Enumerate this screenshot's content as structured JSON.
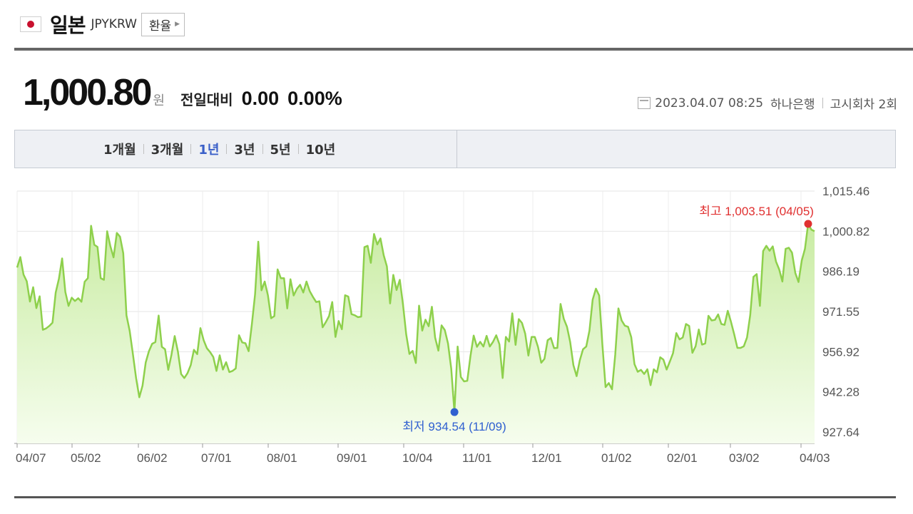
{
  "header": {
    "country": "일본",
    "code": "JPYKRW",
    "fx_button": "환율"
  },
  "price": {
    "value": "1,000.80",
    "unit": "원",
    "compare_label": "전일대비",
    "change": "0.00",
    "change_pct": "0.00%"
  },
  "meta": {
    "datetime": "2023.04.07 08:25",
    "bank": "하나은행",
    "notice": "고시회차 2회"
  },
  "tabs": [
    "1개월",
    "3개월",
    "1년",
    "3년",
    "5년",
    "10년"
  ],
  "active_tab": "1년",
  "colors": {
    "line": "#8ed04c",
    "fill_top": "#c9eca3",
    "fill_bottom": "#f6fdee",
    "high": "#e03030",
    "low": "#3060d0",
    "active_tab": "#3a5fc8"
  },
  "chart_data": {
    "type": "area",
    "title": "",
    "xlabel": "",
    "ylabel": "",
    "yticks": [
      "1,015.46",
      "1,000.82",
      "986.19",
      "971.55",
      "956.92",
      "942.28",
      "927.64"
    ],
    "ylim": [
      927.64,
      1015.46
    ],
    "xticks": [
      "04/07",
      "05/02",
      "06/02",
      "07/01",
      "08/01",
      "09/01",
      "10/04",
      "11/01",
      "12/01",
      "01/02",
      "02/01",
      "03/02",
      "04/03"
    ],
    "grid": true,
    "high_label": "최고 1,003.51 (04/05)",
    "low_label": "최저 934.54 (11/09)",
    "high": {
      "date": "04/05",
      "value": 1003.51
    },
    "low": {
      "date": "11/09",
      "value": 934.54
    },
    "series": [
      {
        "values": [
          987.6,
          991.4,
          985.0,
          982.6,
          975.2,
          980.4,
          972.8,
          977.1,
          964.9,
          965.4,
          966.3,
          967.5,
          978.5,
          983.5,
          990.9,
          978.7,
          973.6,
          976.6,
          975.4,
          976.4,
          975.1,
          982.4,
          983.7,
          1002.8,
          995.9,
          995.1,
          983.7,
          983.1,
          1000.8,
          995.4,
          991.3,
          1000.2,
          998.8,
          992.8,
          970.2,
          964.5,
          956.1,
          947.3,
          940.3,
          944.5,
          953.0,
          957.1,
          959.8,
          960.4,
          970.1,
          958.7,
          957.8,
          950.3,
          955.8,
          962.6,
          957.0,
          948.8,
          947.3,
          949.1,
          952.0,
          957.6,
          956.0,
          965.5,
          961.1,
          958.2,
          956.8,
          955.0,
          949.9,
          955.6,
          950.4,
          953.1,
          949.5,
          949.9,
          950.8,
          962.9,
          960.3,
          960.0,
          957.1,
          966.9,
          977.8,
          997.0,
          979.3,
          982.5,
          977.5,
          969.1,
          969.9,
          986.9,
          983.7,
          983.7,
          972.7,
          983.3,
          977.4,
          979.8,
          981.3,
          978.5,
          982.5,
          979.0,
          976.9,
          975.0,
          975.3,
          965.8,
          967.7,
          969.9,
          975.0,
          962.3,
          968.1,
          965.1,
          977.5,
          977.0,
          970.6,
          970.2,
          969.5,
          969.7,
          995.0,
          995.5,
          989.3,
          999.8,
          996.0,
          998.2,
          992.1,
          988.0,
          974.5,
          984.9,
          979.4,
          983.1,
          974.1,
          963.2,
          956.1,
          957.2,
          952.8,
          973.7,
          964.6,
          968.6,
          966.2,
          973.3,
          962.1,
          957.3,
          966.5,
          964.8,
          959.9,
          950.8,
          934.9,
          958.8,
          947.7,
          946.1,
          946.3,
          955.4,
          962.8,
          958.7,
          960.5,
          958.8,
          962.7,
          958.8,
          960.5,
          962.9,
          959.6,
          947.3,
          962.3,
          960.6,
          970.9,
          959.4,
          968.8,
          967.4,
          963.5,
          955.5,
          962.3,
          962.3,
          958.6,
          952.9,
          954.3,
          961.1,
          961.9,
          958.2,
          958.3,
          974.3,
          968.9,
          966.0,
          960.4,
          952.0,
          948.0,
          953.8,
          957.8,
          958.8,
          964.6,
          975.9,
          979.9,
          977.4,
          959.6,
          944.0,
          945.5,
          943.2,
          955.7,
          972.7,
          968.3,
          966.4,
          966.0,
          962.2,
          952.4,
          949.6,
          950.3,
          948.8,
          950.5,
          944.7,
          950.5,
          949.4,
          954.9,
          954.0,
          950.4,
          953.3,
          956.4,
          963.7,
          961.4,
          962.1,
          967.0,
          966.3,
          956.5,
          958.9,
          965.0,
          959.5,
          959.9,
          970.0,
          968.3,
          968.5,
          970.5,
          967.0,
          966.7,
          971.8,
          967.8,
          963.3,
          958.3,
          958.3,
          958.9,
          962.1,
          970.3,
          984.2,
          985.2,
          973.6,
          993.6,
          995.5,
          993.7,
          995.3,
          989.8,
          986.9,
          982.5,
          994.4,
          994.8,
          993.0,
          985.6,
          982.3,
          990.1,
          994.4,
          1003.5,
          1001.4,
          1000.8
        ]
      }
    ]
  }
}
